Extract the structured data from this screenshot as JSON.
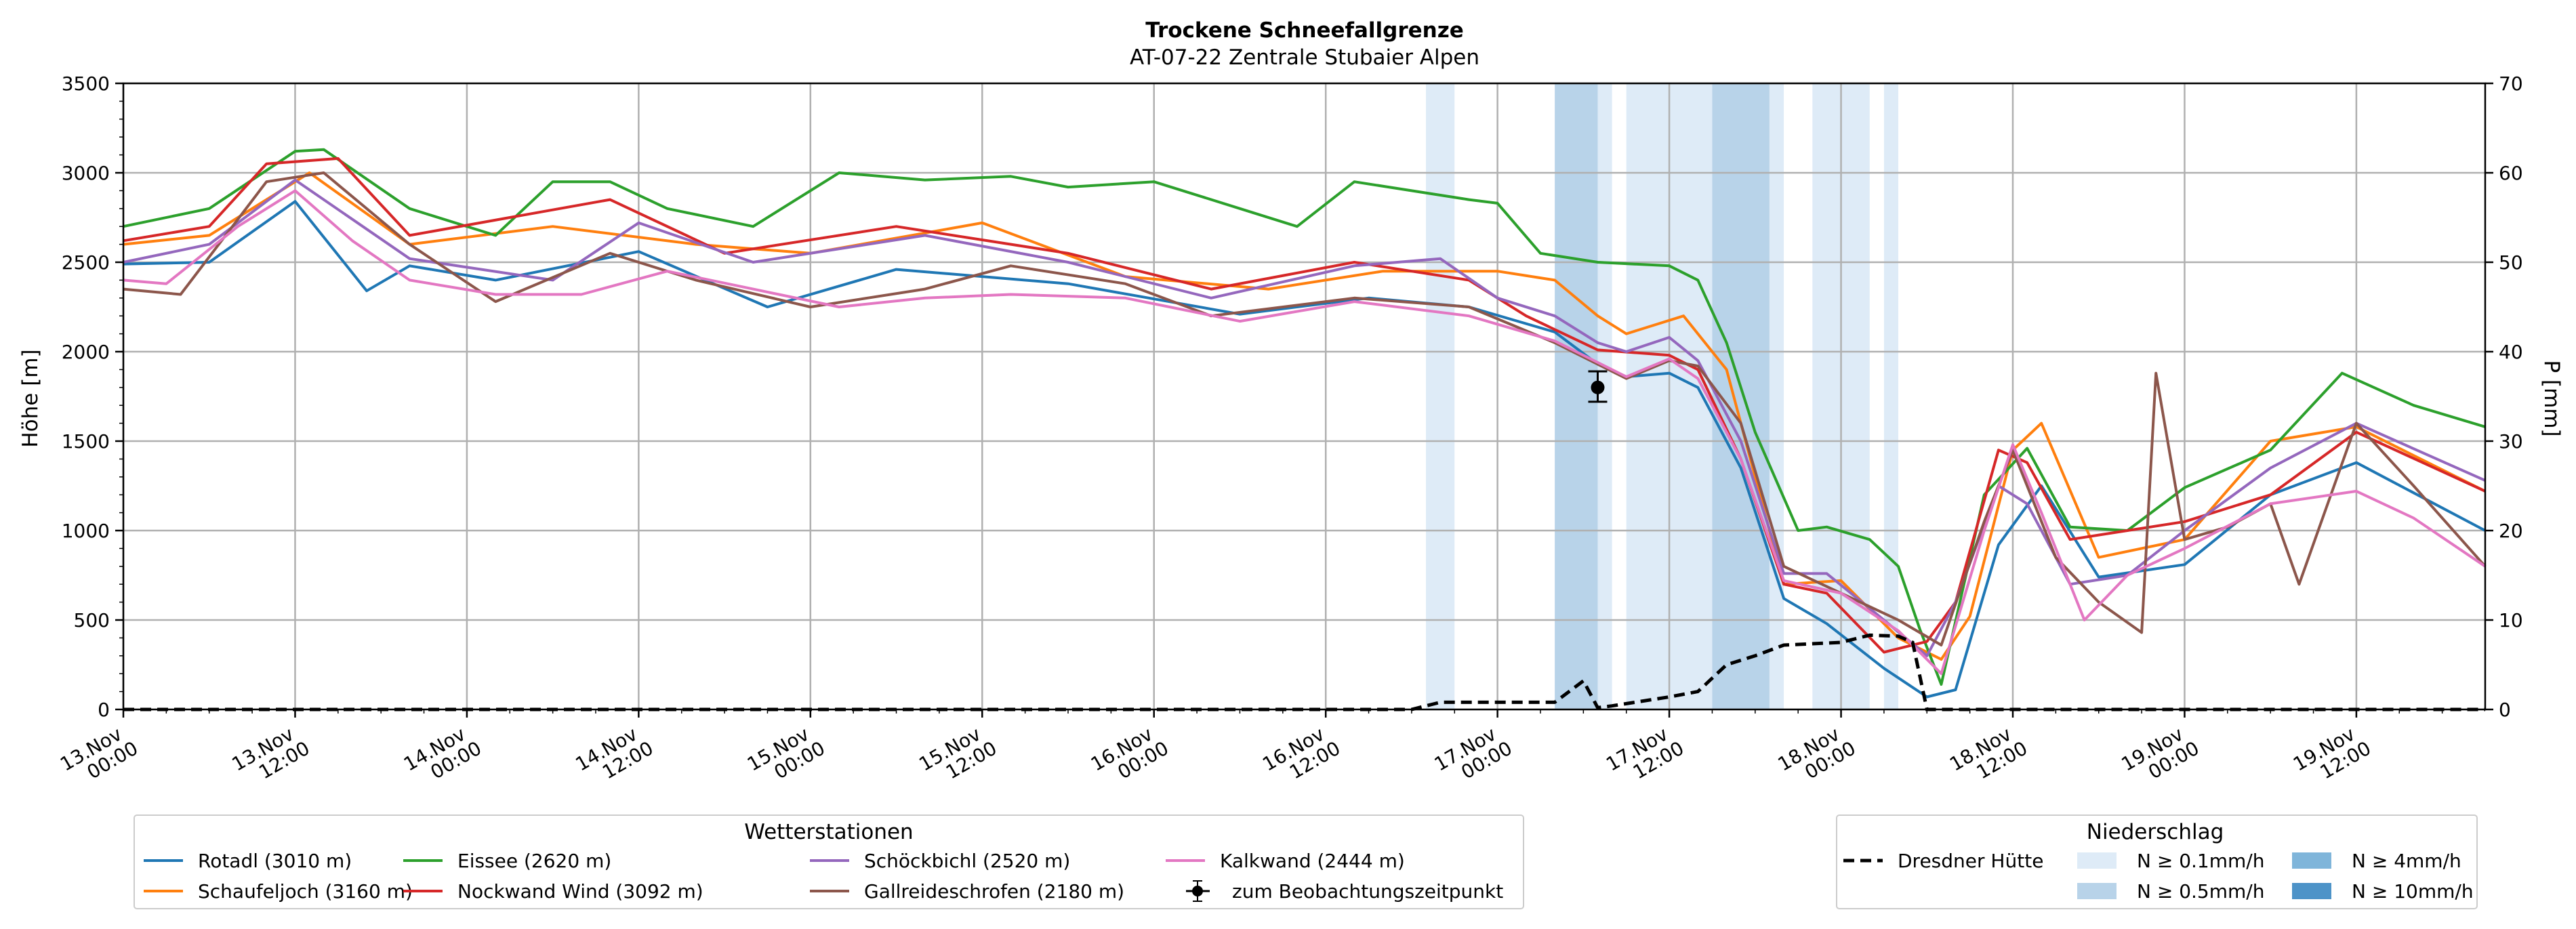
{
  "chart_data": {
    "type": "line",
    "title": "Trockene Schneefallgrenze",
    "subtitle": "AT-07-22 Zentrale Stubaier Alpen",
    "xlabel": "",
    "ylabel": "Höhe [m]",
    "y2label": "P [mm]",
    "ylim": [
      0,
      3500
    ],
    "y2lim": [
      0,
      70
    ],
    "yticks": [
      "0",
      "500",
      "1000",
      "1500",
      "2000",
      "2500",
      "3000",
      "3500"
    ],
    "y2ticks": [
      "0",
      "10",
      "20",
      "30",
      "40",
      "50",
      "60",
      "70"
    ],
    "x_unit": "hours since 13.Nov 00:00",
    "xlim": [
      0,
      165
    ],
    "xticks": [
      {
        "t": 0,
        "l1": "13.Nov",
        "l2": "00:00"
      },
      {
        "t": 12,
        "l1": "13.Nov",
        "l2": "12:00"
      },
      {
        "t": 24,
        "l1": "14.Nov",
        "l2": "00:00"
      },
      {
        "t": 36,
        "l1": "14.Nov",
        "l2": "12:00"
      },
      {
        "t": 48,
        "l1": "15.Nov",
        "l2": "00:00"
      },
      {
        "t": 60,
        "l1": "15.Nov",
        "l2": "12:00"
      },
      {
        "t": 72,
        "l1": "16.Nov",
        "l2": "00:00"
      },
      {
        "t": 84,
        "l1": "16.Nov",
        "l2": "12:00"
      },
      {
        "t": 96,
        "l1": "17.Nov",
        "l2": "00:00"
      },
      {
        "t": 108,
        "l1": "17.Nov",
        "l2": "12:00"
      },
      {
        "t": 120,
        "l1": "18.Nov",
        "l2": "00:00"
      },
      {
        "t": 132,
        "l1": "18.Nov",
        "l2": "12:00"
      },
      {
        "t": 144,
        "l1": "19.Nov",
        "l2": "00:00"
      },
      {
        "t": 156,
        "l1": "19.Nov",
        "l2": "12:00"
      }
    ],
    "grid": true,
    "precip_bands": [
      {
        "start": 91,
        "end": 93,
        "level": 0
      },
      {
        "start": 100,
        "end": 103,
        "level": 1
      },
      {
        "start": 103,
        "end": 104,
        "level": 0
      },
      {
        "start": 105,
        "end": 111,
        "level": 0
      },
      {
        "start": 111,
        "end": 115,
        "level": 1
      },
      {
        "start": 115,
        "end": 116,
        "level": 0
      },
      {
        "start": 118,
        "end": 122,
        "level": 0
      },
      {
        "start": 123,
        "end": 124,
        "level": 0
      }
    ],
    "series": [
      {
        "name": "Rotadl (3010 m)",
        "color": "#1f77b4",
        "t": [
          0,
          6,
          12,
          17,
          20,
          26,
          36,
          45,
          54,
          66,
          78,
          87,
          94,
          100,
          103,
          105,
          108,
          110,
          113,
          116,
          119,
          123,
          126,
          128,
          131,
          134,
          138,
          144,
          150,
          156,
          165
        ],
        "values": [
          2490,
          2500,
          2840,
          2340,
          2480,
          2400,
          2560,
          2250,
          2460,
          2380,
          2210,
          2300,
          2250,
          2110,
          1930,
          1860,
          1880,
          1800,
          1350,
          620,
          480,
          230,
          70,
          110,
          920,
          1250,
          740,
          810,
          1200,
          1380,
          1000
        ]
      },
      {
        "name": "Schaufeljoch (3160 m)",
        "color": "#ff7f0e",
        "t": [
          0,
          6,
          13,
          20,
          30,
          40,
          48,
          60,
          70,
          80,
          88,
          96,
          100,
          103,
          105,
          107,
          109,
          112,
          116,
          120,
          124,
          127,
          129,
          132,
          134,
          138,
          144,
          150,
          156,
          165
        ],
        "values": [
          2600,
          2650,
          3000,
          2600,
          2700,
          2600,
          2550,
          2720,
          2420,
          2350,
          2450,
          2450,
          2400,
          2200,
          2100,
          2150,
          2200,
          1900,
          700,
          720,
          400,
          280,
          520,
          1450,
          1600,
          850,
          950,
          1500,
          1580,
          1220
        ]
      },
      {
        "name": "Eissee (2620 m)",
        "color": "#2ca02c",
        "t": [
          0,
          6,
          12,
          14,
          20,
          26,
          30,
          34,
          38,
          44,
          50,
          56,
          62,
          66,
          72,
          78,
          82,
          86,
          94,
          96,
          99,
          103,
          108,
          110,
          112,
          114,
          117,
          119,
          122,
          124,
          125.5,
          127,
          130,
          133,
          136,
          140,
          144,
          150,
          155,
          160,
          165
        ],
        "values": [
          2700,
          2800,
          3120,
          3130,
          2800,
          2650,
          2950,
          2950,
          2800,
          2700,
          3000,
          2960,
          2980,
          2920,
          2950,
          2800,
          2700,
          2950,
          2850,
          2830,
          2550,
          2500,
          2480,
          2400,
          2050,
          1550,
          1000,
          1020,
          950,
          800,
          450,
          140,
          1200,
          1460,
          1020,
          1000,
          1240,
          1450,
          1880,
          1700,
          1580
        ]
      },
      {
        "name": "Nockwand Wind (3092 m)",
        "color": "#d62728",
        "t": [
          0,
          6,
          10,
          15,
          20,
          34,
          42,
          54,
          66,
          76,
          86,
          94,
          98,
          103,
          108,
          110,
          113,
          116,
          119,
          123,
          126,
          128,
          131,
          133,
          136,
          140,
          144,
          150,
          156,
          165
        ],
        "values": [
          2620,
          2700,
          3050,
          3080,
          2650,
          2850,
          2550,
          2700,
          2550,
          2350,
          2500,
          2400,
          2200,
          2010,
          1980,
          1900,
          1400,
          700,
          650,
          320,
          380,
          600,
          1450,
          1380,
          950,
          1000,
          1050,
          1200,
          1550,
          1220
        ]
      },
      {
        "name": "Schöckbichl (2520 m)",
        "color": "#9467bd",
        "t": [
          0,
          6,
          12,
          20,
          30,
          36,
          44,
          56,
          66,
          76,
          86,
          92,
          96,
          100,
          103,
          105,
          108,
          110,
          113,
          116,
          119,
          123,
          126,
          128,
          131,
          133,
          136,
          140,
          144,
          150,
          156,
          165
        ],
        "values": [
          2500,
          2600,
          2960,
          2520,
          2400,
          2720,
          2500,
          2650,
          2500,
          2300,
          2480,
          2520,
          2300,
          2200,
          2050,
          2000,
          2080,
          1950,
          1500,
          760,
          760,
          500,
          300,
          600,
          1250,
          1150,
          700,
          750,
          1000,
          1350,
          1600,
          1280
        ]
      },
      {
        "name": "Gallreideschrofen (2180 m)",
        "color": "#8c564b",
        "t": [
          0,
          4,
          10,
          14,
          20,
          26,
          34,
          40,
          48,
          56,
          62,
          70,
          76,
          86,
          94,
          100,
          105,
          108,
          110,
          113,
          116,
          120,
          124,
          127,
          130,
          132,
          135,
          138,
          141,
          142,
          144,
          147,
          150,
          152,
          156,
          160,
          165
        ],
        "values": [
          2350,
          2320,
          2950,
          3000,
          2600,
          2280,
          2550,
          2400,
          2250,
          2350,
          2480,
          2380,
          2200,
          2300,
          2250,
          2050,
          1850,
          1950,
          1920,
          1600,
          800,
          650,
          500,
          360,
          1050,
          1450,
          850,
          600,
          430,
          1880,
          950,
          1020,
          1150,
          700,
          1600,
          1250,
          800
        ]
      },
      {
        "name": "Kalkwand (2444 m)",
        "color": "#e377c2",
        "t": [
          0,
          3,
          8,
          12,
          16,
          20,
          26,
          32,
          38,
          44,
          50,
          56,
          62,
          70,
          78,
          86,
          94,
          100,
          105,
          108,
          110,
          113,
          116,
          120,
          124,
          127,
          130,
          132,
          134,
          137,
          140,
          144,
          150,
          156,
          160,
          165
        ],
        "values": [
          2400,
          2380,
          2700,
          2900,
          2620,
          2400,
          2320,
          2320,
          2450,
          2350,
          2250,
          2300,
          2320,
          2300,
          2170,
          2280,
          2200,
          2060,
          1860,
          1960,
          1850,
          1400,
          720,
          650,
          440,
          200,
          1000,
          1480,
          1100,
          500,
          750,
          900,
          1150,
          1220,
          1070,
          800
        ]
      }
    ],
    "precip_series": {
      "name": "Dresdner Hütte",
      "color": "#000000",
      "t": [
        0,
        90,
        92,
        100,
        101,
        102,
        103,
        104,
        108,
        110,
        112,
        114,
        116,
        120,
        122,
        124,
        125,
        126,
        165
      ],
      "values": [
        0,
        0,
        0.8,
        0.8,
        2,
        3.2,
        0.2,
        0.4,
        1.4,
        2,
        5,
        6,
        7.2,
        7.5,
        8.3,
        8.2,
        7.5,
        0,
        0
      ]
    },
    "observation": {
      "t": 103,
      "value": 1800,
      "err_low": 1720,
      "err_high": 1890
    },
    "legend_station_title": "Wetterstationen",
    "legend_obs_label": "zum Beobachtungszeitpunkt",
    "legend_precip_title": "Niederschlag",
    "legend_precip_items": [
      {
        "label": "N ≥ 0.1mm/h",
        "color": "#deebf7"
      },
      {
        "label": "N ≥ 4mm/h",
        "color": "#7fb5da"
      },
      {
        "label": "N ≥ 0.5mm/h",
        "color": "#b8d3e9"
      },
      {
        "label": "N ≥ 10mm/h",
        "color": "#4d93c8"
      }
    ]
  }
}
